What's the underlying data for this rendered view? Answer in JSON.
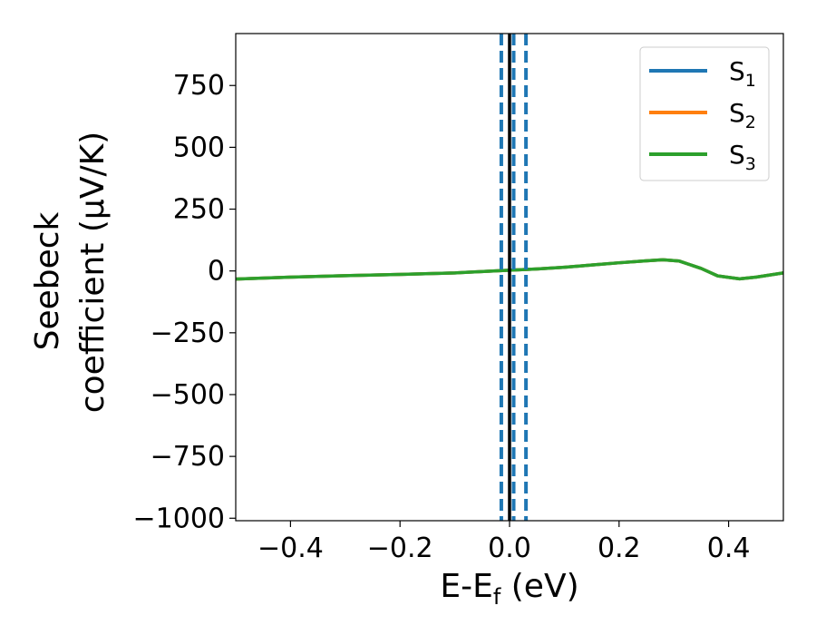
{
  "chart_data": {
    "type": "line",
    "xlabel": "E-E_f (eV)",
    "xlabel_parts": {
      "main": "E-E",
      "sub": "f",
      "unit": " (eV)"
    },
    "ylabel_lines": [
      "Seebeck",
      "coefficient  (μV/K)"
    ],
    "xlim": [
      -0.5,
      0.5
    ],
    "ylim": [
      -1010,
      960
    ],
    "xticks": [
      -0.4,
      -0.2,
      0.0,
      0.2,
      0.4
    ],
    "xtick_labels": [
      "−0.4",
      "−0.2",
      "0.0",
      "0.2",
      "0.4"
    ],
    "yticks": [
      750,
      500,
      250,
      0,
      -250,
      -500,
      -750,
      -1000
    ],
    "ytick_labels": [
      "750",
      "500",
      "250",
      "0",
      "−250",
      "−500",
      "−750",
      "−1000"
    ],
    "grid": false,
    "legend_position": "top-right",
    "series": [
      {
        "name": "S_1",
        "label_main": "S",
        "label_sub": "1",
        "color": "#1f77b4",
        "x": [
          -0.5,
          -0.4,
          -0.3,
          -0.2,
          -0.1,
          0.0,
          0.05,
          0.1,
          0.15,
          0.2,
          0.25,
          0.28,
          0.31,
          0.35,
          0.38,
          0.42,
          0.45,
          0.5
        ],
        "y": [
          -33,
          -25,
          -19,
          -14,
          -8,
          3,
          8,
          15,
          24,
          33,
          41,
          45,
          40,
          10,
          -20,
          -32,
          -25,
          -8
        ]
      },
      {
        "name": "S_2",
        "label_main": "S",
        "label_sub": "2",
        "color": "#ff7f0e",
        "x": [
          -0.5,
          -0.4,
          -0.3,
          -0.2,
          -0.1,
          0.0,
          0.05,
          0.1,
          0.15,
          0.2,
          0.25,
          0.28,
          0.31,
          0.35,
          0.38,
          0.42,
          0.45,
          0.5
        ],
        "y": [
          -33,
          -25,
          -19,
          -14,
          -8,
          3,
          8,
          15,
          24,
          33,
          41,
          45,
          40,
          10,
          -20,
          -32,
          -25,
          -8
        ]
      },
      {
        "name": "S_3",
        "label_main": "S",
        "label_sub": "3",
        "color": "#2ca02c",
        "x": [
          -0.5,
          -0.4,
          -0.3,
          -0.2,
          -0.1,
          0.0,
          0.05,
          0.1,
          0.15,
          0.2,
          0.25,
          0.28,
          0.31,
          0.35,
          0.38,
          0.42,
          0.45,
          0.5
        ],
        "y": [
          -33,
          -25,
          -19,
          -14,
          -8,
          3,
          8,
          15,
          24,
          33,
          41,
          45,
          40,
          10,
          -20,
          -32,
          -25,
          -8
        ]
      }
    ],
    "vertical_lines": [
      {
        "x": 0.0,
        "style": "solid",
        "color": "#000000"
      },
      {
        "x": -0.015,
        "style": "dashed",
        "color": "#1f77b4"
      },
      {
        "x": 0.0075,
        "style": "dashed",
        "color": "#1f77b4"
      },
      {
        "x": 0.03,
        "style": "dashed",
        "color": "#1f77b4"
      }
    ]
  }
}
